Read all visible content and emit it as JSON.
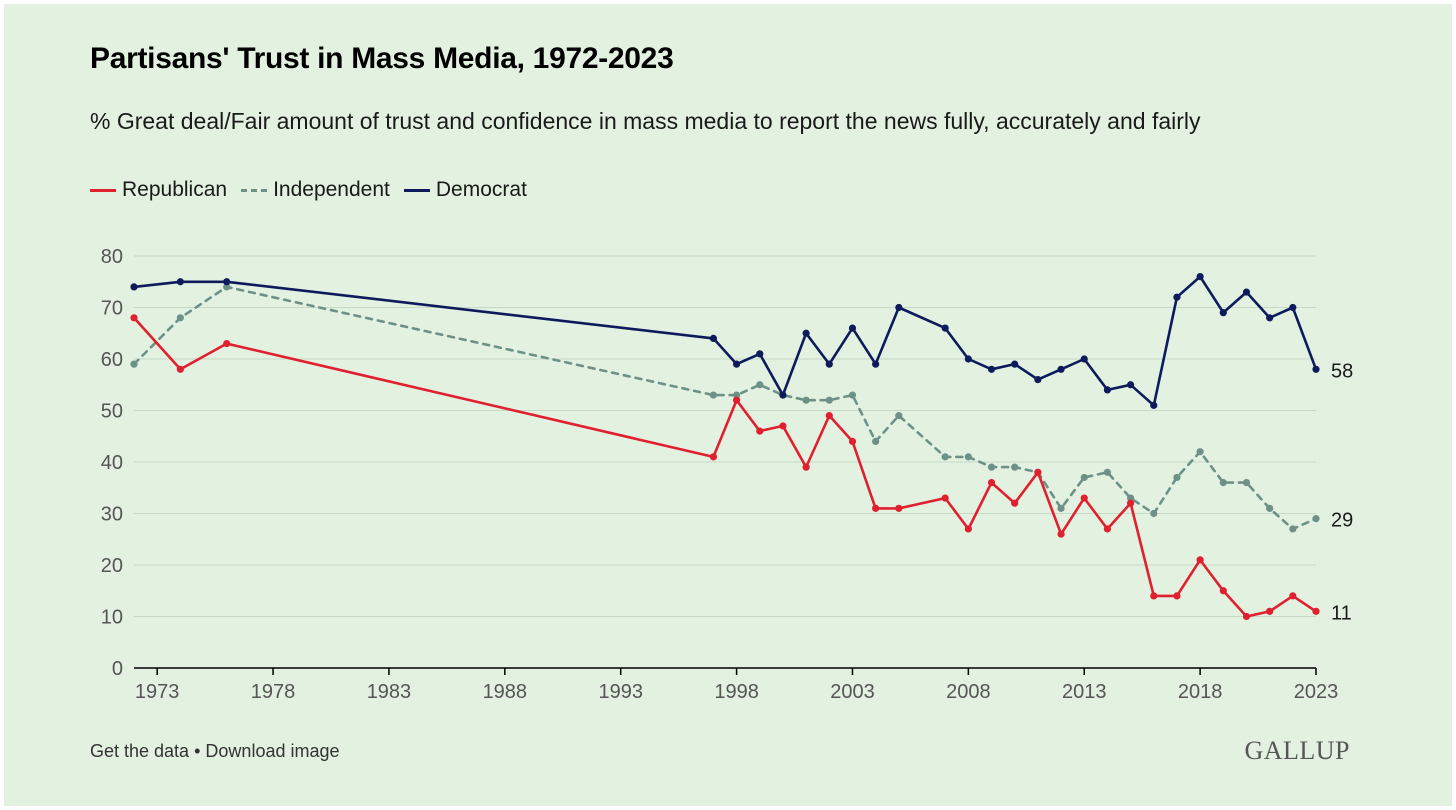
{
  "header": {
    "title": "Partisans' Trust in Mass Media, 1972-2023",
    "subtitle": "% Great deal/Fair amount of trust and confidence in mass media to report the news fully, accurately and fairly"
  },
  "footer": {
    "get_data": "Get the data",
    "separator": "•",
    "download": "Download image",
    "brand": "GALLUP"
  },
  "colors": {
    "background": "#e3f1e1",
    "republican": "#e0202e",
    "independent": "#6e9187",
    "democrat": "#0d1b5c",
    "grid": "#c6d9c6"
  },
  "chart_data": {
    "type": "line",
    "title": "Partisans' Trust in Mass Media, 1972-2023",
    "subtitle": "% Great deal/Fair amount of trust and confidence in mass media to report the news fully, accurately and fairly",
    "xlabel": "",
    "ylabel": "",
    "xlim": [
      1972,
      2023
    ],
    "ylim": [
      0,
      80
    ],
    "x_ticks": [
      1973,
      1978,
      1983,
      1988,
      1993,
      1998,
      2003,
      2008,
      2013,
      2018,
      2023
    ],
    "y_ticks": [
      0,
      10,
      20,
      30,
      40,
      50,
      60,
      70,
      80
    ],
    "grid": "horizontal",
    "legend_position": "top-left",
    "series": [
      {
        "name": "Republican",
        "style": "solid",
        "color": "#e0202e",
        "end_label": "11",
        "x": [
          1972,
          1974,
          1976,
          1997,
          1998,
          1999,
          2000,
          2001,
          2002,
          2003,
          2004,
          2005,
          2007,
          2008,
          2009,
          2010,
          2011,
          2012,
          2013,
          2014,
          2015,
          2016,
          2017,
          2018,
          2019,
          2020,
          2021,
          2022,
          2023
        ],
        "values": [
          68,
          58,
          63,
          41,
          52,
          46,
          47,
          39,
          49,
          44,
          31,
          31,
          33,
          27,
          36,
          32,
          38,
          26,
          33,
          27,
          32,
          14,
          14,
          21,
          15,
          10,
          11,
          14,
          11
        ]
      },
      {
        "name": "Independent",
        "style": "dashed",
        "color": "#6e9187",
        "end_label": "29",
        "x": [
          1972,
          1974,
          1976,
          1997,
          1998,
          1999,
          2000,
          2001,
          2002,
          2003,
          2004,
          2005,
          2007,
          2008,
          2009,
          2010,
          2011,
          2012,
          2013,
          2014,
          2015,
          2016,
          2017,
          2018,
          2019,
          2020,
          2021,
          2022,
          2023
        ],
        "values": [
          59,
          68,
          74,
          53,
          53,
          55,
          53,
          52,
          52,
          53,
          44,
          49,
          41,
          41,
          39,
          39,
          38,
          31,
          37,
          38,
          33,
          30,
          37,
          42,
          36,
          36,
          31,
          27,
          29
        ]
      },
      {
        "name": "Democrat",
        "style": "solid",
        "color": "#0d1b5c",
        "end_label": "58",
        "x": [
          1972,
          1974,
          1976,
          1997,
          1998,
          1999,
          2000,
          2001,
          2002,
          2003,
          2004,
          2005,
          2007,
          2008,
          2009,
          2010,
          2011,
          2012,
          2013,
          2014,
          2015,
          2016,
          2017,
          2018,
          2019,
          2020,
          2021,
          2022,
          2023
        ],
        "values": [
          74,
          75,
          75,
          64,
          59,
          61,
          53,
          65,
          59,
          66,
          59,
          70,
          66,
          60,
          58,
          59,
          56,
          58,
          60,
          54,
          55,
          51,
          72,
          76,
          69,
          73,
          68,
          70,
          58
        ]
      }
    ]
  }
}
